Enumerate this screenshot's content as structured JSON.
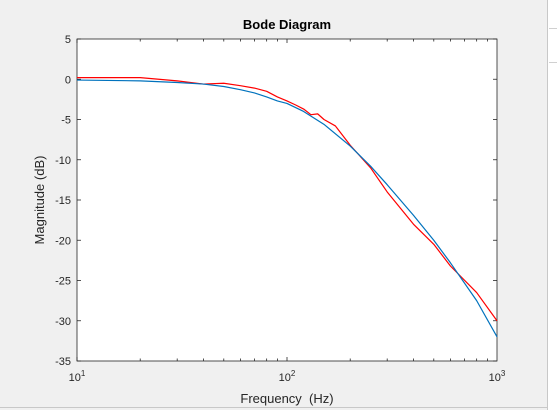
{
  "chart_data": {
    "type": "line",
    "title": "Bode Diagram",
    "xlabel": "Frequency  (Hz)",
    "ylabel": "Magnitude (dB)",
    "xscale": "log",
    "xlim": [
      10,
      1000
    ],
    "ylim": [
      -35,
      5
    ],
    "yticks": [
      5,
      0,
      -5,
      -10,
      -15,
      -20,
      -25,
      -30,
      -35
    ],
    "yticklabels": [
      "5",
      "0",
      "-5",
      "-10",
      "-15",
      "-20",
      "-25",
      "-30",
      "-35"
    ],
    "xticks": [
      10,
      100,
      1000
    ],
    "xticklabels": [
      {
        "base": "10",
        "exp": "1"
      },
      {
        "base": "10",
        "exp": "2"
      },
      {
        "base": "10",
        "exp": "3"
      }
    ],
    "grid": false,
    "series": [
      {
        "color": "#ff0000",
        "x": [
          10,
          20,
          30,
          40,
          50,
          60,
          70,
          80,
          90,
          100,
          110,
          120,
          130,
          140,
          150,
          170,
          200,
          250,
          300,
          400,
          500,
          600,
          800,
          1000
        ],
        "y": [
          0.2,
          0.2,
          -0.2,
          -0.6,
          -0.5,
          -0.8,
          -1.1,
          -1.5,
          -2.2,
          -2.7,
          -3.2,
          -3.7,
          -4.4,
          -4.3,
          -5.0,
          -5.8,
          -8.2,
          -11.0,
          -14.0,
          -18.0,
          -20.5,
          -23.2,
          -26.5,
          -30.0
        ]
      },
      {
        "color": "#0072bd",
        "x": [
          10,
          20,
          30,
          40,
          50,
          60,
          70,
          80,
          90,
          100,
          120,
          150,
          200,
          250,
          300,
          400,
          500,
          600,
          800,
          1000
        ],
        "y": [
          -0.1,
          -0.2,
          -0.4,
          -0.6,
          -0.9,
          -1.3,
          -1.7,
          -2.2,
          -2.7,
          -3.0,
          -4.0,
          -5.6,
          -8.3,
          -10.8,
          -13.1,
          -16.9,
          -20.0,
          -22.8,
          -27.5,
          -32.0
        ]
      }
    ]
  }
}
